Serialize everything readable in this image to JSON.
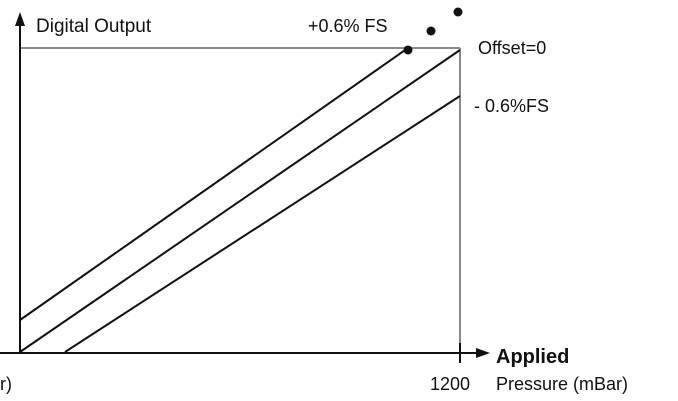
{
  "diagram": {
    "y_axis_label": "Digital Output",
    "x_axis_label_line1": "Applied",
    "x_axis_label_line2": "Pressure (mBar)",
    "x_origin_label_fragment": "r)",
    "x_max_tick": "1200",
    "lines": [
      {
        "name": "plus-offset",
        "label": "+0.6% FS"
      },
      {
        "name": "zero-offset",
        "label": "Offset=0"
      },
      {
        "name": "minus-offset",
        "label": "- 0.6%FS"
      }
    ],
    "colors": {
      "ink": "#111111",
      "grid": "#8a8a8a",
      "background": "#ffffff"
    },
    "marker_dots": 3
  }
}
